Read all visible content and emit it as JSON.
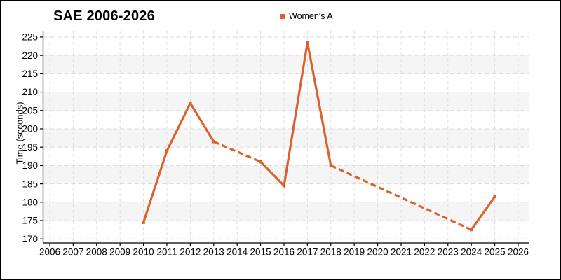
{
  "colors": {
    "line": "#d9622e",
    "grid_h": "#d9d9d9",
    "grid_v": "#dedede",
    "band": "#f5f5f5",
    "axis": "#000000"
  },
  "legend": {
    "label": "Women's A"
  },
  "chart_data": {
    "type": "line",
    "title": "SAE 2006-2026",
    "xlabel": "",
    "ylabel": "Time (seconds)",
    "legend_position": "top-center",
    "grid": true,
    "x_ticks": [
      2006,
      2007,
      2008,
      2009,
      2010,
      2011,
      2012,
      2013,
      2014,
      2015,
      2016,
      2017,
      2018,
      2019,
      2020,
      2021,
      2022,
      2023,
      2024,
      2025,
      2026
    ],
    "y_ticks": [
      170,
      175,
      180,
      185,
      190,
      195,
      200,
      205,
      210,
      215,
      220,
      225
    ],
    "xlim": [
      2005.716,
      2026.45
    ],
    "ylim": [
      168.9,
      226.7
    ],
    "bands_y": [
      [
        215,
        220
      ],
      [
        205,
        210
      ],
      [
        195,
        200
      ],
      [
        185,
        190
      ],
      [
        175,
        180
      ]
    ],
    "series": [
      {
        "name": "Women's A",
        "color": "#d9622e",
        "marker": "square",
        "points": [
          {
            "x": 2010,
            "y": 174.5
          },
          {
            "x": 2011,
            "y": 194
          },
          {
            "x": 2012,
            "y": 207
          },
          {
            "x": 2013,
            "y": 196.5
          },
          {
            "x": 2015,
            "y": 191
          },
          {
            "x": 2016,
            "y": 184.5
          },
          {
            "x": 2017,
            "y": 223.5
          },
          {
            "x": 2018,
            "y": 190
          },
          {
            "x": 2024,
            "y": 172.5
          },
          {
            "x": 2025,
            "y": 181.5
          }
        ],
        "segments": [
          {
            "from": 2010,
            "to": 2013,
            "style": "solid"
          },
          {
            "from": 2013,
            "to": 2015,
            "style": "dashed"
          },
          {
            "from": 2015,
            "to": 2018,
            "style": "solid"
          },
          {
            "from": 2018,
            "to": 2024,
            "style": "dashed"
          },
          {
            "from": 2024,
            "to": 2025,
            "style": "solid"
          }
        ]
      }
    ]
  }
}
